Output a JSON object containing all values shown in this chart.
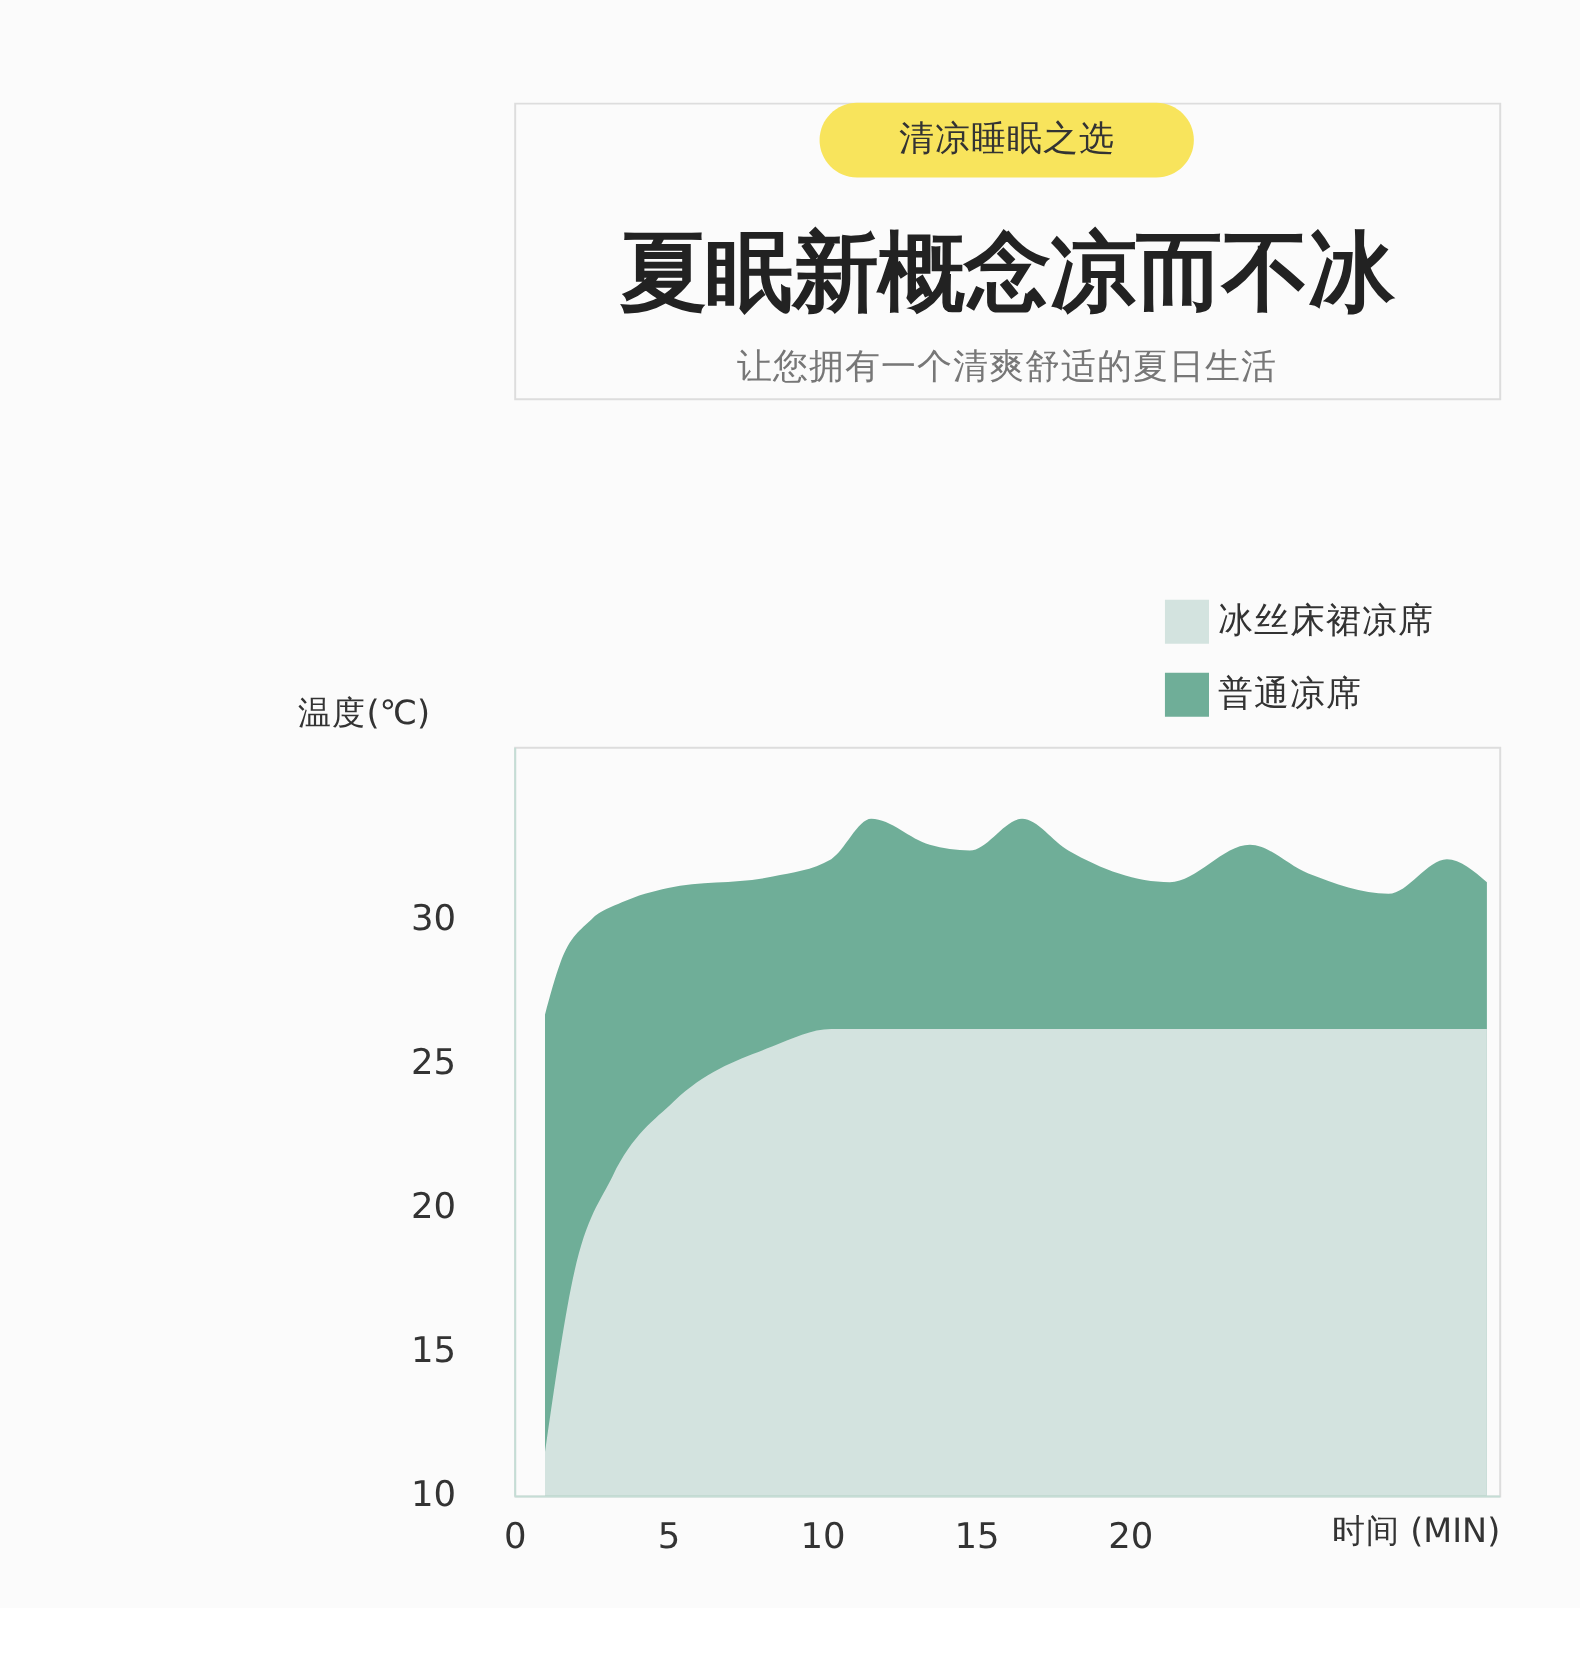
{
  "chart_data": {
    "type": "area",
    "title": "夏眠新概念凉而不冰",
    "subtitle": "让您拥有一个清爽舒适的夏日生活",
    "annotations": [
      "清凉睡眠之选"
    ],
    "xlabel": "时间 (MIN)",
    "ylabel": "温度(℃)",
    "xlim": [
      0,
      32
    ],
    "ylim": [
      10,
      36
    ],
    "xticks": [
      0,
      5,
      10,
      15,
      20
    ],
    "yticks": [
      10,
      15,
      20,
      25,
      30
    ],
    "grid": false,
    "legend": "top right",
    "series": [
      {
        "name": "冰丝床裙凉席",
        "color": "#d3e3df",
        "x": [
          1,
          1.9,
          3.2,
          5.2,
          8.4,
          10.3,
          15,
          20,
          25,
          31.6
        ],
        "values": [
          11.5,
          17.5,
          21.1,
          23.7,
          25.6,
          26.2,
          26.2,
          26.2,
          26.2,
          26.2
        ]
      },
      {
        "name": "普通凉席",
        "color": "#6fae98",
        "x": [
          1,
          1.5,
          2.5,
          3.5,
          5,
          8.4,
          10.3,
          11.6,
          13.5,
          14.8,
          16.5,
          18,
          21.3,
          23.9,
          25.8,
          28.4,
          30.3,
          31.6
        ],
        "values": [
          26.7,
          28.5,
          30.0,
          30.6,
          31.1,
          31.5,
          32.1,
          33.5,
          32.6,
          32.4,
          33.5,
          32.4,
          31.3,
          32.6,
          31.6,
          30.9,
          32.1,
          31.3
        ]
      }
    ]
  }
}
